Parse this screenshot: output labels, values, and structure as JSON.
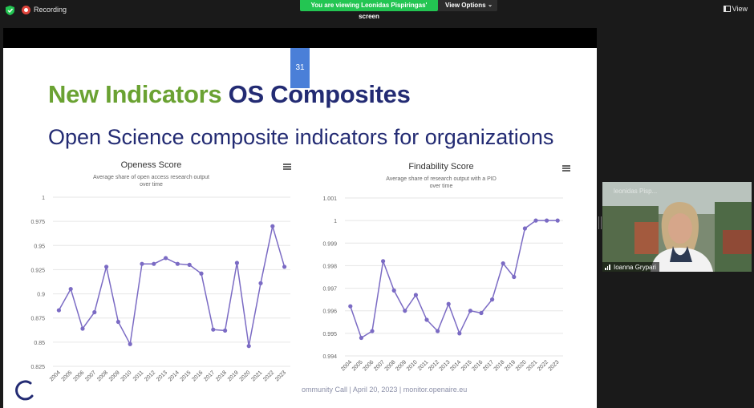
{
  "topbar": {
    "recording_label": "Recording",
    "banner_text": "You are viewing Leonidas Pispiringas' screen",
    "view_options_label": "View Options",
    "view_label": "View",
    "security_color": "#23c552",
    "recording_color": "#e0453c"
  },
  "slide": {
    "page_number": "31",
    "title_part1": "New Indicators",
    "title_part2": "OS Composites",
    "subtitle": "Open Science composite indicators for organizations",
    "footer": "ommunity Call | April 20, 2023 | monitor.openaire.eu"
  },
  "participant": {
    "name": "Ioanna Grypari",
    "faint_label": "leonidas Pisp..."
  },
  "chart_data": [
    {
      "type": "line",
      "title": "Openess Score",
      "subtitle": "Average share of open access research output over time",
      "subtitle_lines": [
        "Average share of open access research output",
        "over time"
      ],
      "x": [
        "2004",
        "2005",
        "2006",
        "2007",
        "2008",
        "2009",
        "2010",
        "2011",
        "2012",
        "2013",
        "2014",
        "2015",
        "2016",
        "2017",
        "2018",
        "2019",
        "2020",
        "2021",
        "2022",
        "2023"
      ],
      "y": [
        0.883,
        0.905,
        0.864,
        0.881,
        0.928,
        0.871,
        0.848,
        0.931,
        0.931,
        0.937,
        0.931,
        0.93,
        0.921,
        0.863,
        0.862,
        0.932,
        0.846,
        0.911,
        0.97,
        0.928
      ],
      "y_ticks": [
        0.825,
        0.85,
        0.875,
        0.9,
        0.925,
        0.95,
        0.975,
        1
      ],
      "y_tick_labels": [
        "0.825",
        "0.85",
        "0.875",
        "0.9",
        "0.925",
        "0.95",
        "0.975",
        "1"
      ],
      "ylim": [
        0.825,
        1
      ],
      "grid": true,
      "color": "#7b6bc4"
    },
    {
      "type": "line",
      "title": "Findability Score",
      "subtitle": "Average share of research output with a PID over time",
      "subtitle_lines": [
        "Average share of research output with a PID",
        "over time"
      ],
      "x": [
        "2004",
        "2005",
        "2006",
        "2007",
        "2008",
        "2009",
        "2010",
        "2011",
        "2012",
        "2013",
        "2014",
        "2015",
        "2016",
        "2017",
        "2018",
        "2019",
        "2020",
        "2021",
        "2022",
        "2023"
      ],
      "y": [
        0.9962,
        0.9948,
        0.9951,
        0.9982,
        0.9969,
        0.996,
        0.9967,
        0.9956,
        0.9951,
        0.9963,
        0.995,
        0.996,
        0.9959,
        0.9965,
        0.9981,
        0.9975,
        0.99965,
        1.0,
        1.0,
        1.0
      ],
      "y_ticks": [
        0.994,
        0.995,
        0.996,
        0.997,
        0.998,
        0.999,
        1,
        1.001
      ],
      "y_tick_labels": [
        "0.994",
        "0.995",
        "0.996",
        "0.997",
        "0.998",
        "0.999",
        "1",
        "1.001"
      ],
      "ylim": [
        0.994,
        1.001
      ],
      "grid": true,
      "color": "#7b6bc4"
    }
  ]
}
